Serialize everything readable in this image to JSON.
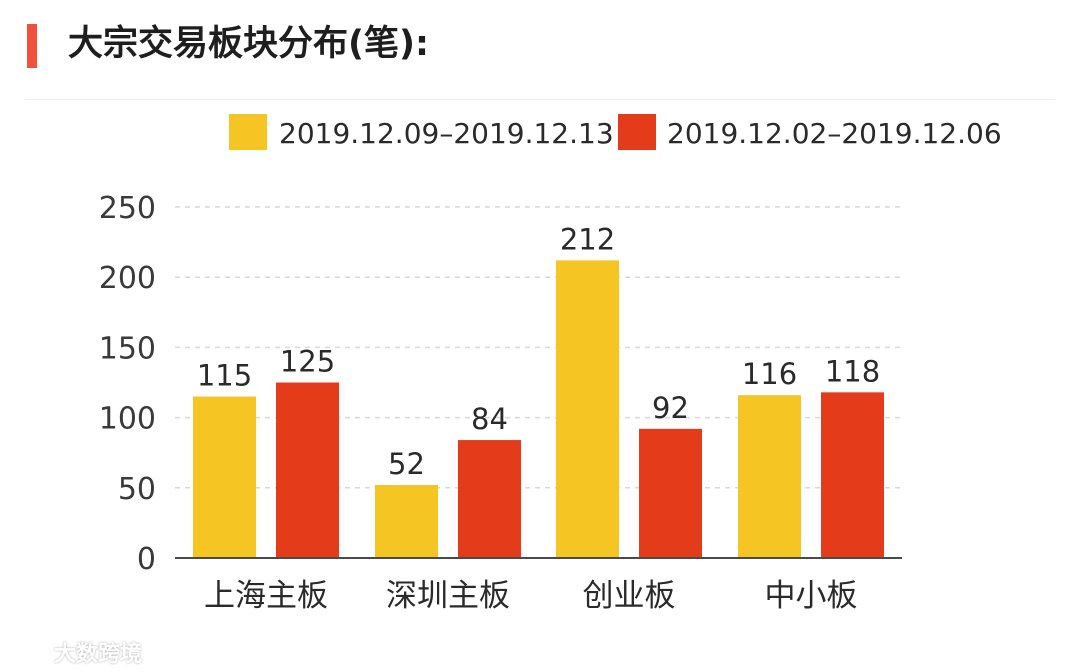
{
  "header": {
    "title": "大宗交易板块分布(笔):"
  },
  "colors": {
    "accent": "#f1503a",
    "series_1": "#f5c523",
    "series_2": "#e43c1a"
  },
  "watermark": {
    "text": "大数跨境"
  },
  "chart_data": {
    "type": "bar",
    "categories": [
      "上海主板",
      "深圳主板",
      "创业板",
      "中小板"
    ],
    "series": [
      {
        "name": "2019.12.09–2019.12.13",
        "values": [
          115,
          52,
          212,
          116
        ],
        "color": "#f5c523"
      },
      {
        "name": "2019.12.02–2019.12.06",
        "values": [
          125,
          84,
          92,
          118
        ],
        "color": "#e43c1a"
      }
    ],
    "y_ticks": [
      "0",
      "50",
      "100",
      "150",
      "200",
      "250"
    ],
    "ylim": [
      0,
      250
    ],
    "grid": true,
    "legend": "top",
    "data_labels": true
  }
}
